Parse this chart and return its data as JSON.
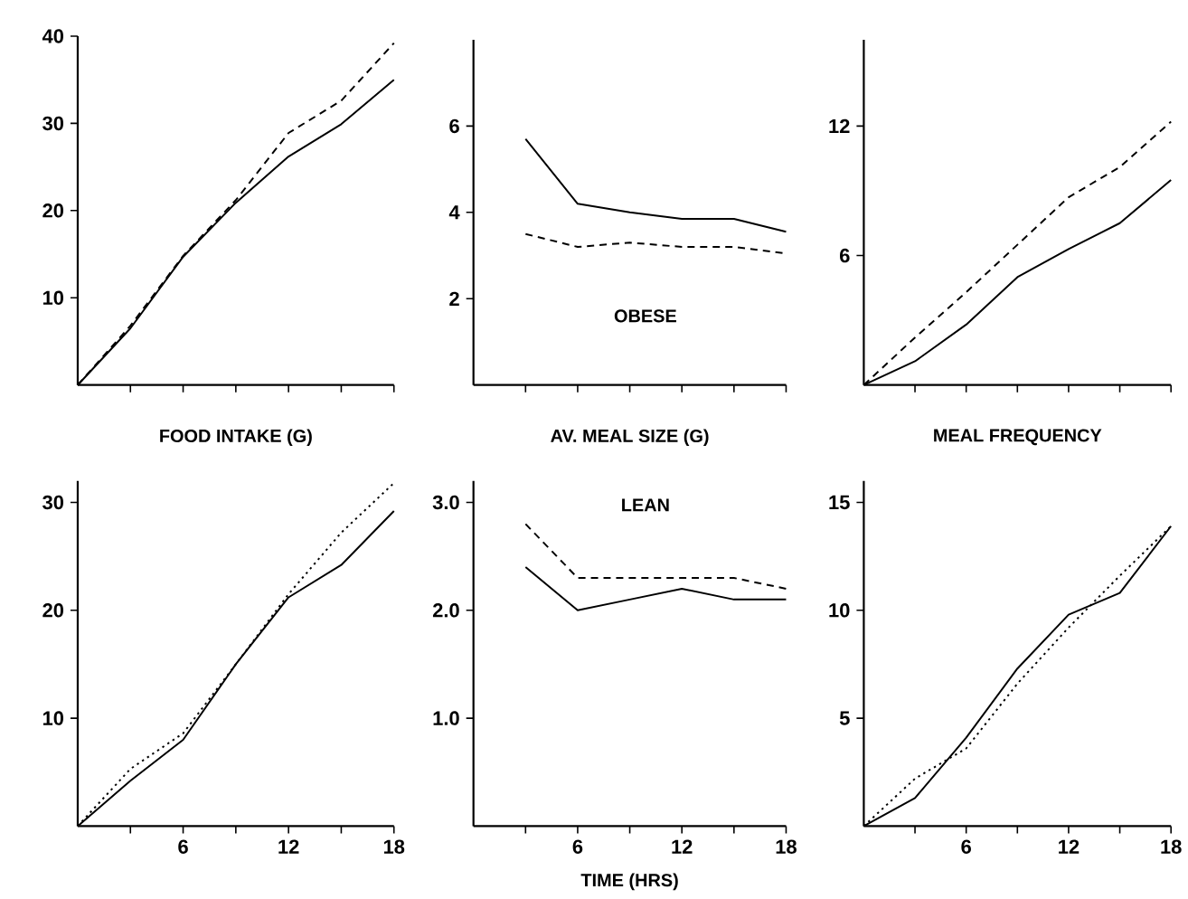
{
  "chart_data": [
    {
      "type": "line",
      "xlabel": "FOOD INTAKE (G)",
      "x": [
        0,
        3,
        6,
        9,
        12,
        15,
        18
      ],
      "xlim": [
        0,
        18
      ],
      "xticks": [
        {
          "value": 3,
          "label": null
        },
        {
          "value": 6,
          "label": null
        },
        {
          "value": 9,
          "label": null
        },
        {
          "value": 12,
          "label": null
        },
        {
          "value": 15,
          "label": null
        },
        {
          "value": 18,
          "label": null
        }
      ],
      "ylim": [
        0,
        40
      ],
      "yticks": [
        10,
        20,
        30,
        40
      ],
      "tick_labels": "y",
      "series": [
        {
          "color": "#000000",
          "line_style": "solid",
          "values": [
            0,
            6.5,
            14.7,
            20.9,
            26.2,
            29.9,
            35
          ]
        },
        {
          "color": "#000000",
          "line_style": "dashed",
          "values": [
            0,
            6.8,
            14.8,
            21.2,
            28.9,
            32.6,
            39.2
          ]
        }
      ]
    },
    {
      "type": "line",
      "xlabel": "AV. MEAL SIZE (G)",
      "annotations": [
        "OBESE"
      ],
      "x": [
        3,
        6,
        9,
        12,
        15,
        18
      ],
      "xlim": [
        0,
        18
      ],
      "xticks": [
        {
          "value": 3,
          "label": null
        },
        {
          "value": 6,
          "label": null
        },
        {
          "value": 9,
          "label": null
        },
        {
          "value": 12,
          "label": null
        },
        {
          "value": 15,
          "label": null
        },
        {
          "value": 18,
          "label": null
        }
      ],
      "ylim": [
        0,
        8
      ],
      "yticks": [
        2,
        4,
        6
      ],
      "tick_labels": "y",
      "series": [
        {
          "color": "#000000",
          "line_style": "solid",
          "values": [
            5.7,
            4.2,
            4.0,
            3.85,
            3.85,
            3.55
          ]
        },
        {
          "color": "#000000",
          "line_style": "dashed",
          "values": [
            3.5,
            3.2,
            3.3,
            3.2,
            3.2,
            3.05
          ]
        }
      ]
    },
    {
      "type": "line",
      "xlabel": "MEAL FREQUENCY",
      "x": [
        0,
        3,
        6,
        9,
        12,
        15,
        18
      ],
      "xlim": [
        0,
        18
      ],
      "xticks": [
        {
          "value": 3,
          "label": null
        },
        {
          "value": 6,
          "label": null
        },
        {
          "value": 9,
          "label": null
        },
        {
          "value": 12,
          "label": null
        },
        {
          "value": 15,
          "label": null
        },
        {
          "value": 18,
          "label": null
        }
      ],
      "ylim": [
        0,
        16
      ],
      "yticks": [
        {
          "value": 6,
          "label": "6"
        },
        {
          "value": 12,
          "label": "12"
        }
      ],
      "tick_labels": "y",
      "series": [
        {
          "color": "#000000",
          "line_style": "solid",
          "values": [
            0,
            1.1,
            2.8,
            5,
            6.3,
            7.5,
            9.5
          ]
        },
        {
          "color": "#000000",
          "line_style": "dashed",
          "values": [
            0,
            2.2,
            4.3,
            6.5,
            8.7,
            10.1,
            12.2
          ]
        }
      ]
    },
    {
      "type": "line",
      "x": [
        0,
        3,
        6,
        9,
        12,
        15,
        18
      ],
      "xlim": [
        0,
        18
      ],
      "xticks": [
        {
          "value": 3,
          "label": null
        },
        6,
        {
          "value": 9,
          "label": null
        },
        12,
        {
          "value": 15,
          "label": null
        },
        18
      ],
      "ylim": [
        0,
        32
      ],
      "yticks": [
        10,
        20,
        30
      ],
      "series": [
        {
          "color": "#000000",
          "line_style": "solid",
          "values": [
            0,
            4.2,
            8,
            15,
            21.2,
            24.2,
            29.2
          ]
        },
        {
          "color": "#000000",
          "line_style": "dotted",
          "values": [
            0,
            5.3,
            8.6,
            15,
            21.5,
            27.2,
            31.8
          ]
        }
      ]
    },
    {
      "type": "line",
      "xlabel": "TIME (HRS)",
      "annotations": [
        "LEAN"
      ],
      "x": [
        3,
        6,
        9,
        12,
        15,
        18
      ],
      "xlim": [
        0,
        18
      ],
      "xticks": [
        {
          "value": 3,
          "label": null
        },
        6,
        {
          "value": 9,
          "label": null
        },
        12,
        {
          "value": 15,
          "label": null
        },
        18
      ],
      "ylim": [
        0,
        3.2
      ],
      "yticks": [
        {
          "value": 1,
          "label": "1.0"
        },
        {
          "value": 2,
          "label": "2.0"
        },
        {
          "value": 3,
          "label": "3.0"
        }
      ],
      "series": [
        {
          "color": "#000000",
          "line_style": "solid",
          "values": [
            2.4,
            2.0,
            2.1,
            2.2,
            2.1,
            2.1
          ]
        },
        {
          "color": "#000000",
          "line_style": "dashed",
          "values": [
            2.8,
            2.3,
            2.3,
            2.3,
            2.3,
            2.2
          ]
        }
      ]
    },
    {
      "type": "line",
      "x": [
        0,
        3,
        6,
        9,
        12,
        15,
        18
      ],
      "xlim": [
        0,
        18
      ],
      "xticks": [
        {
          "value": 3,
          "label": null
        },
        6,
        {
          "value": 9,
          "label": null
        },
        12,
        {
          "value": 15,
          "label": null
        },
        18
      ],
      "ylim": [
        0,
        16
      ],
      "yticks": [
        5,
        10,
        15
      ],
      "series": [
        {
          "color": "#000000",
          "line_style": "solid",
          "values": [
            0,
            1.3,
            4.1,
            7.3,
            9.8,
            10.8,
            13.9
          ]
        },
        {
          "color": "#000000",
          "line_style": "dotted",
          "values": [
            0,
            2.2,
            3.6,
            6.6,
            9.2,
            11.6,
            13.9
          ]
        }
      ]
    }
  ]
}
